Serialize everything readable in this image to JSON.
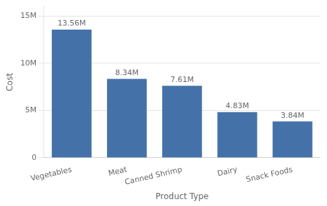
{
  "chart_data": {
    "type": "bar",
    "categories": [
      "Vegetables",
      "Meat",
      "Canned Shrimp",
      "Dairy",
      "Snack Foods"
    ],
    "values": [
      13560000,
      8340000,
      7610000,
      4830000,
      3840000
    ],
    "value_labels": [
      "13.56M",
      "8.34M",
      "7.61M",
      "4.83M",
      "3.84M"
    ],
    "data_labels": true,
    "color": "#4472a8",
    "xlabel": "Product Type",
    "ylabel": "Cost",
    "ylim": [
      0,
      16000000
    ],
    "yticks": [
      0,
      {
        "value": 5000000,
        "label": "5M"
      },
      {
        "value": 10000000,
        "label": "10M"
      },
      {
        "value": 15000000,
        "label": "15M"
      }
    ],
    "grid": true
  }
}
